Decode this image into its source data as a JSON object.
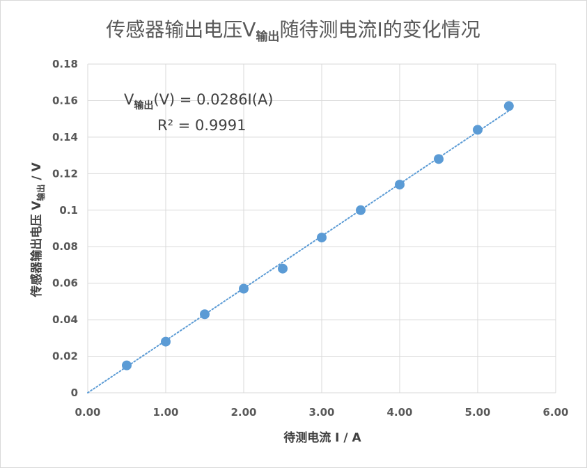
{
  "chart_data": {
    "type": "scatter",
    "title_main": "传感器输出电压V",
    "title_sub": "输出",
    "title_rest": "随待测电流I的变化情况",
    "xlabel": "待测电流 I / A",
    "ylabel_main": "传感器输出电压 V",
    "ylabel_sub": "输出",
    "ylabel_rest": " / V",
    "xlim": [
      0,
      6
    ],
    "ylim": [
      0,
      0.18
    ],
    "x_ticks": [
      "0.00",
      "1.00",
      "2.00",
      "3.00",
      "4.00",
      "5.00",
      "6.00"
    ],
    "y_ticks": [
      "0",
      "0.02",
      "0.04",
      "0.06",
      "0.08",
      "0.1",
      "0.12",
      "0.14",
      "0.16",
      "0.18"
    ],
    "grid": true,
    "series": [
      {
        "x": [
          0.5,
          1.0,
          1.5,
          2.0,
          2.5,
          3.0,
          3.5,
          4.0,
          4.5,
          5.0,
          5.4
        ],
        "y": [
          0.015,
          0.028,
          0.043,
          0.057,
          0.068,
          0.085,
          0.1,
          0.114,
          0.128,
          0.144,
          0.157
        ]
      }
    ],
    "trendline": {
      "type": "linear",
      "slope": 0.0286,
      "intercept": 0,
      "x_range": [
        0,
        5.4
      ]
    },
    "equation_main": "V",
    "equation_sub": "输出",
    "equation_rest": "(V) = 0.0286I(A)",
    "r_squared_label": "R² = 0.9991",
    "colors": {
      "marker": "#5b9bd5",
      "trendline": "#5b9bd5",
      "grid": "#d9d9d9",
      "text": "#595959"
    }
  }
}
